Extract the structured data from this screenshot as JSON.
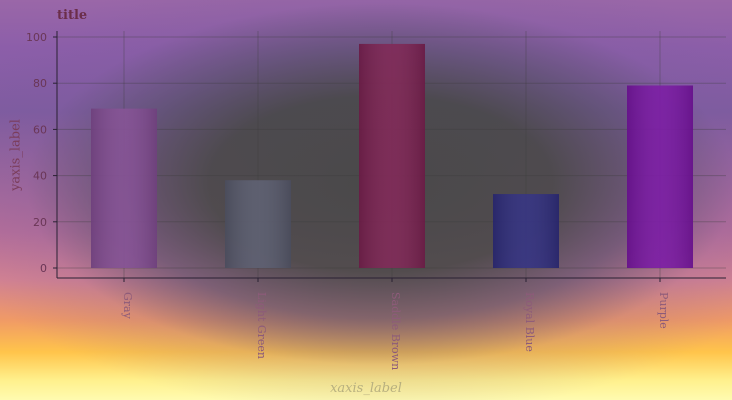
{
  "chart_data": {
    "type": "bar",
    "title": "title",
    "xlabel": "xaxis_label",
    "ylabel": "yaxis_label",
    "categories": [
      "Gray",
      "Light Green",
      "Saddle Brown",
      "Royal Blue",
      "Purple"
    ],
    "values": [
      69,
      38,
      97,
      32,
      79
    ],
    "colors": [
      "#7f4a8f",
      "#56586a",
      "#7a1f4f",
      "#2d2a7c",
      "#7512a0"
    ],
    "ylim": [
      0,
      100
    ],
    "yticks": [
      0,
      20,
      40,
      60,
      80,
      100
    ],
    "grid": true
  }
}
